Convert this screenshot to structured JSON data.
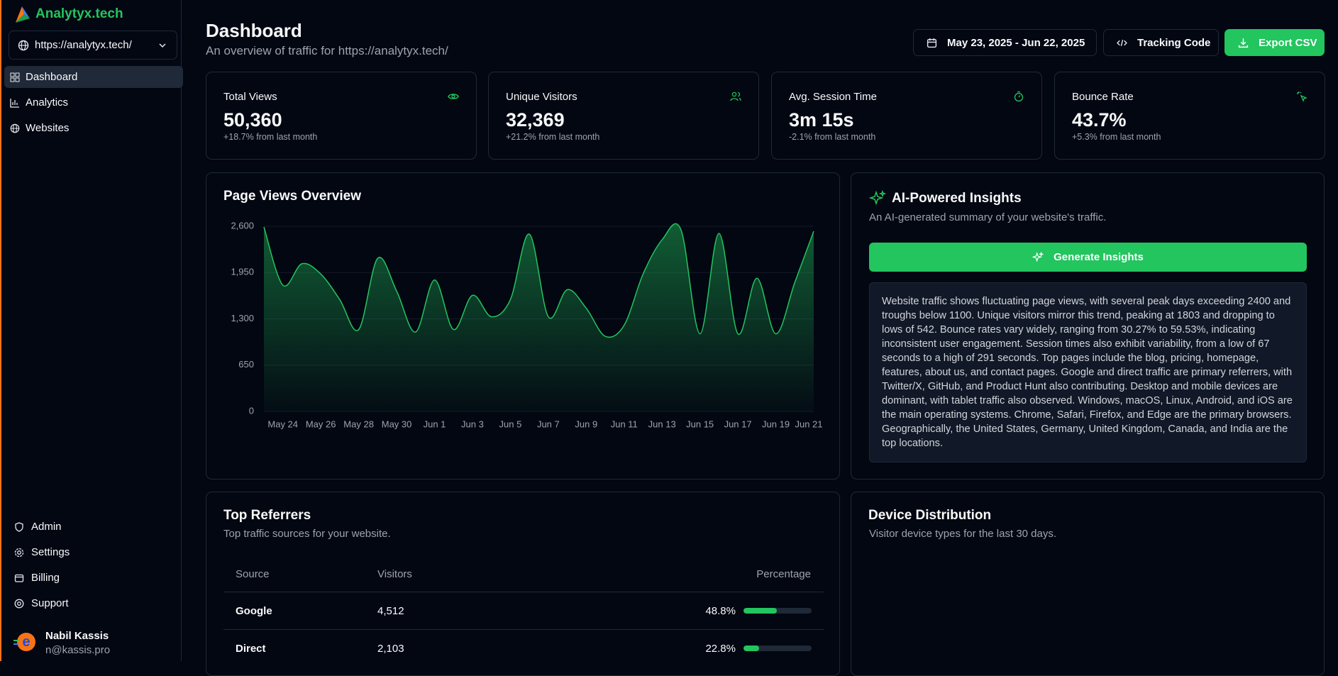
{
  "sidebar": {
    "brand": "Analytyx.tech",
    "site": "https://analytyx.tech/",
    "nav": [
      "Dashboard",
      "Analytics",
      "Websites"
    ],
    "footer_nav": [
      "Admin",
      "Settings",
      "Billing",
      "Support"
    ],
    "user": {
      "name": "Nabil Kassis",
      "email": "n@kassis.pro"
    }
  },
  "header": {
    "title": "Dashboard",
    "subtitle": "An overview of traffic for https://analytyx.tech/",
    "date_range": "May 23, 2025 - Jun 22, 2025",
    "tracking_button": "Tracking Code",
    "export_button": "Export CSV"
  },
  "stats": [
    {
      "label": "Total Views",
      "value": "50,360",
      "change": "+18.7% from last month"
    },
    {
      "label": "Unique Visitors",
      "value": "32,369",
      "change": "+21.2% from last month"
    },
    {
      "label": "Avg. Session Time",
      "value": "3m 15s",
      "change": "-2.1% from last month"
    },
    {
      "label": "Bounce Rate",
      "value": "43.7%",
      "change": "+5.3% from last month"
    }
  ],
  "chart_data": {
    "type": "area",
    "title": "Page Views Overview",
    "categories": [
      null,
      "May 24",
      null,
      "May 26",
      null,
      "May 28",
      null,
      "May 30",
      null,
      "Jun 1",
      null,
      "Jun 3",
      null,
      "Jun 5",
      null,
      "Jun 7",
      null,
      "Jun 9",
      null,
      "Jun 11",
      null,
      "Jun 13",
      null,
      "Jun 15",
      null,
      "Jun 17",
      null,
      "Jun 19",
      null,
      "Jun 21"
    ],
    "values": [
      2590,
      1773,
      2073,
      1930,
      1570,
      1150,
      2150,
      1690,
      1115,
      1845,
      1150,
      1630,
      1330,
      1570,
      2490,
      1330,
      1710,
      1450,
      1055,
      1210,
      1930,
      2410,
      2550,
      1090,
      2500,
      1090,
      1870,
      1090,
      1810,
      2530
    ],
    "color": "#22c55e",
    "ylim": [
      0,
      2600
    ],
    "yticks": [
      0,
      650,
      {
        "value": 1300,
        "label": "1,300"
      },
      {
        "value": 1950,
        "label": "1,950"
      },
      {
        "value": 2600,
        "label": "2,600"
      }
    ],
    "grid": true
  },
  "insights": {
    "title": "AI-Powered Insights",
    "subtitle": "An AI-generated summary of your website's traffic.",
    "button": "Generate Insights",
    "text": "Website traffic shows fluctuating page views, with several peak days exceeding 2400 and troughs below 1100. Unique visitors mirror this trend, peaking at 1803 and dropping to lows of 542. Bounce rates vary widely, ranging from 30.27% to 59.53%, indicating inconsistent user engagement. Session times also exhibit variability, from a low of 67 seconds to a high of 291 seconds. Top pages include the blog, pricing, homepage, features, about us, and contact pages. Google and direct traffic are primary referrers, with Twitter/X, GitHub, and Product Hunt also contributing. Desktop and mobile devices are dominant, with tablet traffic also observed. Windows, macOS, Linux, Android, and iOS are the main operating systems. Chrome, Safari, Firefox, and Edge are the primary browsers. Geographically, the United States, Germany, United Kingdom, Canada, and India are the top locations."
  },
  "referrers": {
    "title": "Top Referrers",
    "subtitle": "Top traffic sources for your website.",
    "columns": [
      "Source",
      "Visitors",
      "Percentage"
    ],
    "rows": [
      {
        "source": "Google",
        "visitors": "4,512",
        "percentage": {
          "value": 48.8,
          "label": "48.8%"
        }
      },
      {
        "source": "Direct",
        "visitors": "2,103",
        "percentage": {
          "value": 22.8,
          "label": "22.8%"
        }
      }
    ]
  },
  "devices": {
    "title": "Device Distribution",
    "subtitle": "Visitor device types for the last 30 days."
  }
}
